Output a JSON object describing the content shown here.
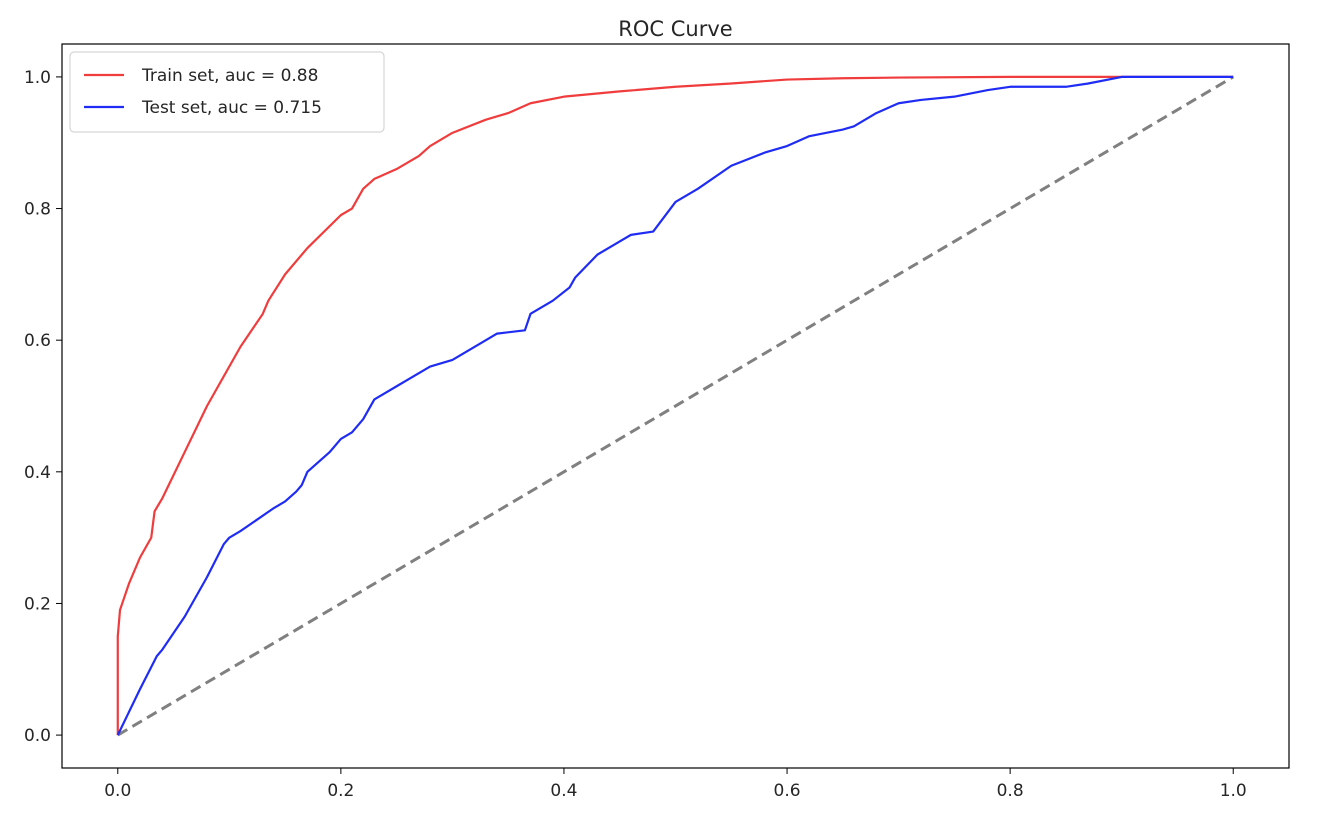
{
  "chart_data": {
    "type": "line",
    "title": "ROC Curve",
    "xlabel": "",
    "ylabel": "",
    "xlim": [
      -0.05,
      1.05
    ],
    "ylim": [
      -0.05,
      1.05
    ],
    "xticks": [
      "0.0",
      "0.2",
      "0.4",
      "0.6",
      "0.8",
      "1.0"
    ],
    "yticks": [
      "0.0",
      "0.2",
      "0.4",
      "0.6",
      "0.8",
      "1.0"
    ],
    "grid": false,
    "legend_position": "upper left",
    "series": [
      {
        "name": "Train set, auc = 0.88",
        "color": "#f03c3c",
        "style": "solid",
        "x": [
          0,
          0,
          0.002,
          0.004,
          0.01,
          0.02,
          0.03,
          0.033,
          0.04,
          0.06,
          0.08,
          0.09,
          0.11,
          0.13,
          0.135,
          0.15,
          0.17,
          0.2,
          0.21,
          0.22,
          0.23,
          0.25,
          0.27,
          0.28,
          0.3,
          0.33,
          0.35,
          0.37,
          0.4,
          0.45,
          0.5,
          0.55,
          0.6,
          0.65,
          0.7,
          0.8,
          0.9,
          1.0
        ],
        "y": [
          0,
          0.15,
          0.19,
          0.2,
          0.23,
          0.27,
          0.3,
          0.34,
          0.36,
          0.43,
          0.5,
          0.53,
          0.59,
          0.64,
          0.66,
          0.7,
          0.74,
          0.79,
          0.8,
          0.83,
          0.845,
          0.86,
          0.88,
          0.895,
          0.915,
          0.935,
          0.945,
          0.96,
          0.97,
          0.978,
          0.985,
          0.99,
          0.996,
          0.998,
          0.999,
          1.0,
          1.0,
          1.0
        ]
      },
      {
        "name": "Test set, auc = 0.715",
        "color": "#1f2cf5",
        "style": "solid",
        "x": [
          0,
          0.02,
          0.035,
          0.04,
          0.06,
          0.08,
          0.095,
          0.1,
          0.11,
          0.14,
          0.15,
          0.16,
          0.165,
          0.17,
          0.18,
          0.19,
          0.2,
          0.21,
          0.22,
          0.23,
          0.25,
          0.28,
          0.3,
          0.33,
          0.34,
          0.365,
          0.37,
          0.39,
          0.405,
          0.41,
          0.43,
          0.45,
          0.46,
          0.48,
          0.5,
          0.52,
          0.55,
          0.58,
          0.6,
          0.62,
          0.65,
          0.66,
          0.68,
          0.7,
          0.72,
          0.75,
          0.78,
          0.8,
          0.82,
          0.85,
          0.87,
          0.9,
          0.93,
          0.96,
          1.0
        ],
        "y": [
          0,
          0.07,
          0.12,
          0.13,
          0.18,
          0.24,
          0.29,
          0.3,
          0.31,
          0.345,
          0.355,
          0.37,
          0.38,
          0.4,
          0.415,
          0.43,
          0.45,
          0.46,
          0.48,
          0.51,
          0.53,
          0.56,
          0.57,
          0.6,
          0.61,
          0.615,
          0.64,
          0.66,
          0.68,
          0.695,
          0.73,
          0.75,
          0.76,
          0.765,
          0.81,
          0.83,
          0.865,
          0.885,
          0.895,
          0.91,
          0.92,
          0.925,
          0.945,
          0.96,
          0.965,
          0.97,
          0.98,
          0.985,
          0.985,
          0.985,
          0.99,
          1.0,
          1.0,
          1.0,
          1.0
        ]
      },
      {
        "name": "",
        "color": "#808080",
        "style": "dashed",
        "x": [
          0,
          1
        ],
        "y": [
          0,
          1
        ]
      }
    ]
  }
}
